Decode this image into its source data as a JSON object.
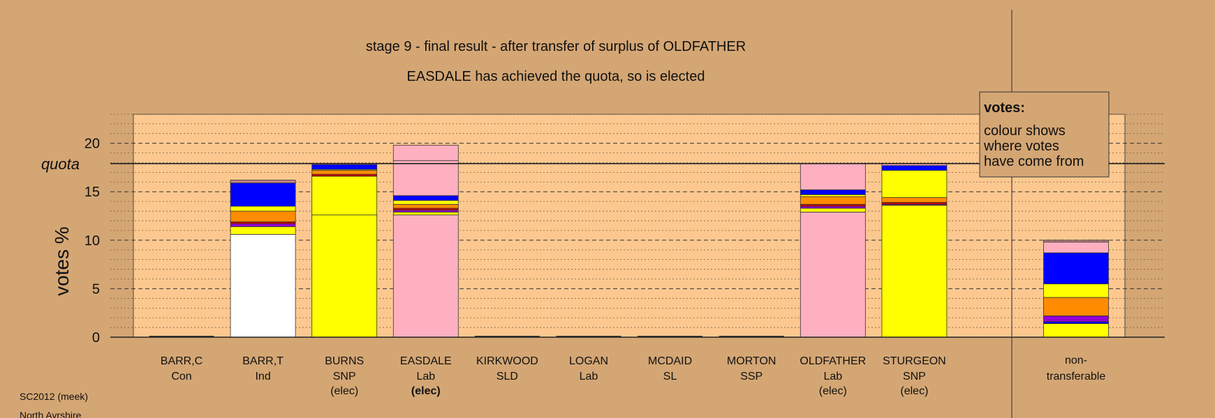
{
  "chart_data": {
    "type": "bar",
    "stacked": true,
    "title": "stage 9 - final result - after transfer of surplus of OLDFATHER",
    "subtitle": "EASDALE has achieved the quota, so is elected",
    "ylabel": "votes %",
    "ylim": [
      0,
      23
    ],
    "yticks": [
      0,
      5,
      10,
      15,
      20
    ],
    "quota": 17.9,
    "quota_label": "quota",
    "legend": {
      "title": "votes:",
      "lines": [
        "colour shows",
        "where votes",
        "have come from"
      ]
    },
    "footer": [
      "SC2012 (meek)",
      "North Ayrshire"
    ],
    "colors": {
      "white": "#ffffff",
      "yellow": "#ffff00",
      "pink": "#ffb0c0",
      "blue": "#0000ff",
      "orange": "#ff8c00",
      "purple": "#9400d3",
      "red": "#cc0000",
      "grey": "#c08080",
      "plot_bg": "#fcc890",
      "page_bg": "#d4a674"
    },
    "candidates": [
      {
        "name": "BARR,C",
        "party": "Con",
        "status": "",
        "total": 0,
        "segments": []
      },
      {
        "name": "BARR,T",
        "party": "Ind",
        "status": "",
        "total": 16.2,
        "segments": [
          {
            "color": "white",
            "value": 10.6
          },
          {
            "color": "yellow",
            "value": 0.8
          },
          {
            "color": "purple",
            "value": 0.3
          },
          {
            "color": "red",
            "value": 0.2
          },
          {
            "color": "orange",
            "value": 1.1
          },
          {
            "color": "yellow",
            "value": 0.5
          },
          {
            "color": "blue",
            "value": 2.4
          },
          {
            "color": "grey",
            "value": 0.3
          }
        ]
      },
      {
        "name": "BURNS",
        "party": "SNP",
        "status": "(elec)",
        "total": 17.9,
        "segments": [
          {
            "color": "yellow",
            "value": 12.6
          },
          {
            "color": "yellow",
            "value": 4.0
          },
          {
            "color": "red",
            "value": 0.2
          },
          {
            "color": "orange",
            "value": 0.4
          },
          {
            "color": "yellow",
            "value": 0.1
          },
          {
            "color": "blue",
            "value": 0.5
          },
          {
            "color": "pink",
            "value": 0.1
          }
        ]
      },
      {
        "name": "EASDALE",
        "party": "Lab",
        "status": "(elec)",
        "total": 19.8,
        "segments": [
          {
            "color": "pink",
            "value": 12.6
          },
          {
            "color": "yellow",
            "value": 0.3
          },
          {
            "color": "purple",
            "value": 0.2
          },
          {
            "color": "red",
            "value": 0.2
          },
          {
            "color": "orange",
            "value": 0.4
          },
          {
            "color": "yellow",
            "value": 0.4
          },
          {
            "color": "blue",
            "value": 0.5
          },
          {
            "color": "pink",
            "value": 3.6
          },
          {
            "color": "pink",
            "value": 1.6
          }
        ]
      },
      {
        "name": "KIRKWOOD",
        "party": "SLD",
        "status": "",
        "total": 0,
        "segments": []
      },
      {
        "name": "LOGAN",
        "party": "Lab",
        "status": "",
        "total": 0,
        "segments": []
      },
      {
        "name": "MCDAID",
        "party": "SL",
        "status": "",
        "total": 0,
        "segments": []
      },
      {
        "name": "MORTON",
        "party": "SSP",
        "status": "",
        "total": 0,
        "segments": []
      },
      {
        "name": "OLDFATHER",
        "party": "Lab",
        "status": "(elec)",
        "total": 17.9,
        "segments": [
          {
            "color": "pink",
            "value": 12.9
          },
          {
            "color": "yellow",
            "value": 0.4
          },
          {
            "color": "purple",
            "value": 0.2
          },
          {
            "color": "red",
            "value": 0.2
          },
          {
            "color": "orange",
            "value": 0.8
          },
          {
            "color": "yellow",
            "value": 0.2
          },
          {
            "color": "blue",
            "value": 0.5
          },
          {
            "color": "pink",
            "value": 2.7
          }
        ]
      },
      {
        "name": "STURGEON",
        "party": "SNP",
        "status": "(elec)",
        "total": 17.9,
        "segments": [
          {
            "color": "yellow",
            "value": 13.6
          },
          {
            "color": "purple",
            "value": 0.1
          },
          {
            "color": "red",
            "value": 0.2
          },
          {
            "color": "orange",
            "value": 0.5
          },
          {
            "color": "yellow",
            "value": 2.8
          },
          {
            "color": "blue",
            "value": 0.5
          },
          {
            "color": "pink",
            "value": 0.2
          }
        ]
      }
    ],
    "non_transferable": {
      "label_line1": "non-",
      "label_line2": "transferable",
      "total": 10.0,
      "segments": [
        {
          "color": "yellow",
          "value": 1.4
        },
        {
          "color": "blue",
          "value": 0.2
        },
        {
          "color": "purple",
          "value": 0.6
        },
        {
          "color": "orange",
          "value": 1.9
        },
        {
          "color": "yellow",
          "value": 1.4
        },
        {
          "color": "blue",
          "value": 3.2
        },
        {
          "color": "pink",
          "value": 1.1
        },
        {
          "color": "grey",
          "value": 0.2
        }
      ]
    }
  }
}
